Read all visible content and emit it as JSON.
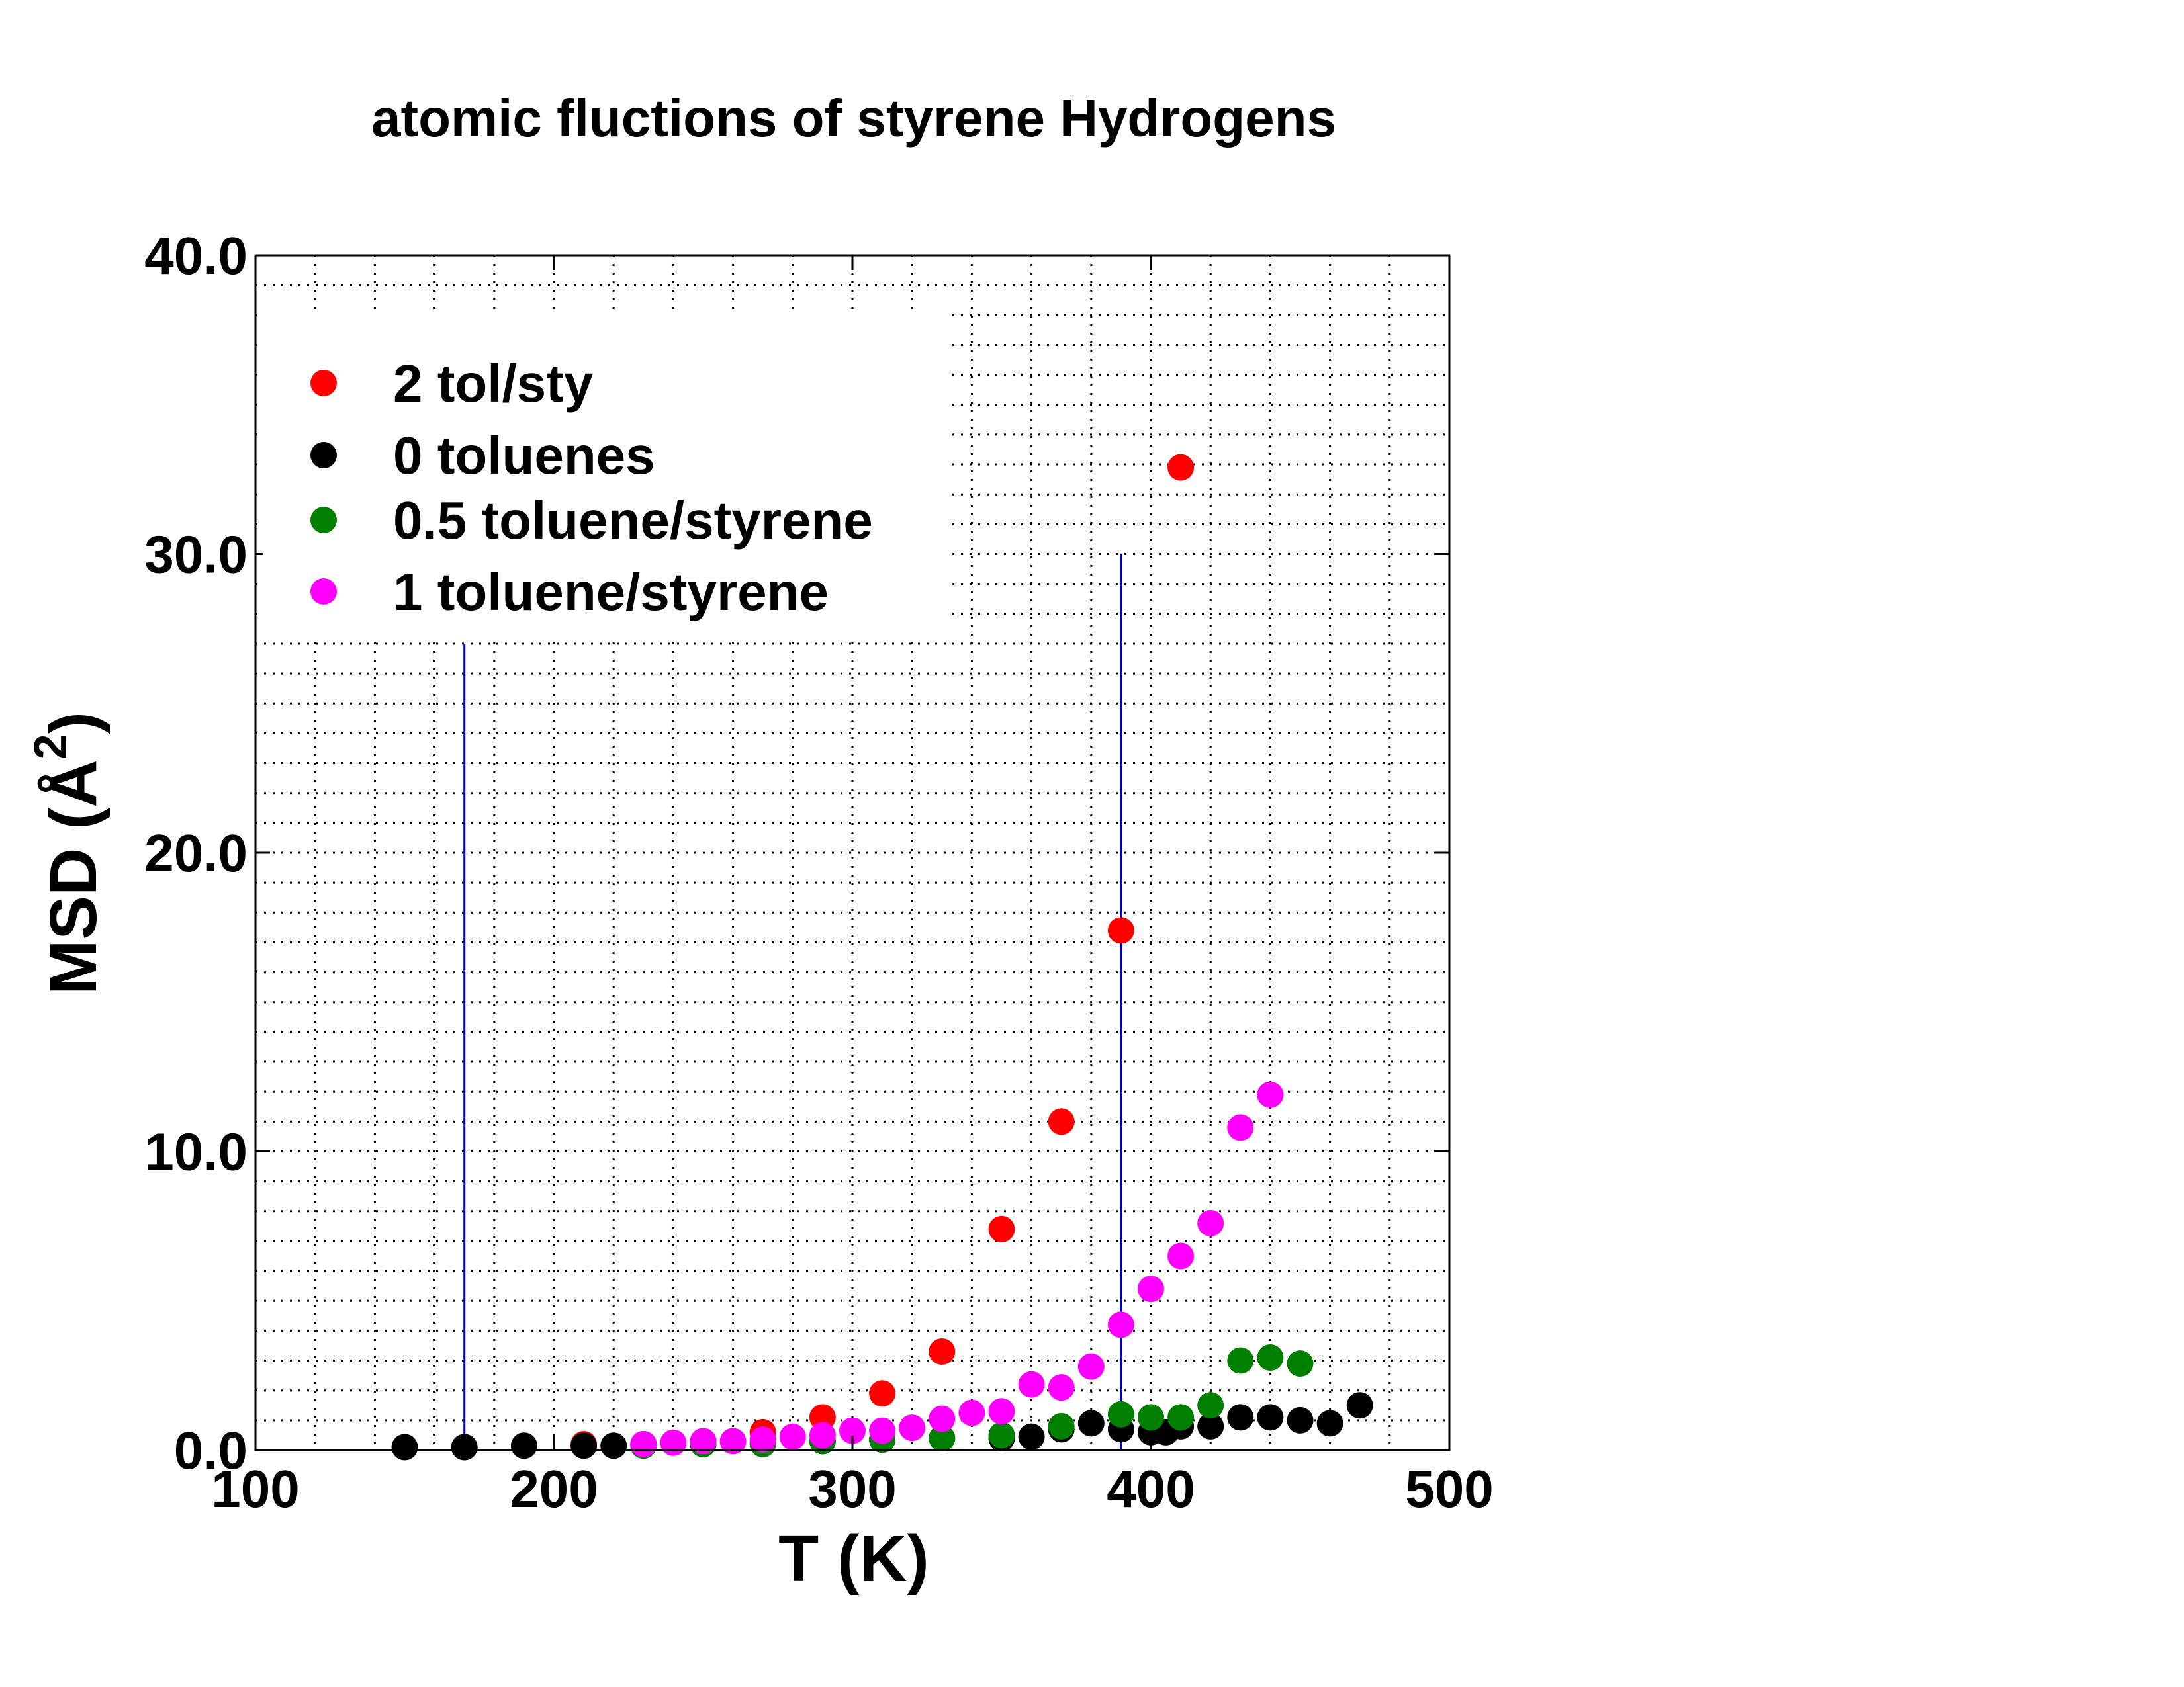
{
  "chart_data": {
    "type": "scatter",
    "title": "atomic fluctions of styrene Hydrogens",
    "xlabel": "T (K)",
    "ylabel_main": "MSD (Å",
    "ylabel_sup": "2",
    "ylabel_close": ")",
    "xlim": [
      100,
      500
    ],
    "ylim": [
      0,
      40
    ],
    "x_ticks": [
      {
        "value": 100,
        "label": "100"
      },
      {
        "value": 200,
        "label": "200"
      },
      {
        "value": 300,
        "label": "300"
      },
      {
        "value": 400,
        "label": "400"
      },
      {
        "value": 500,
        "label": "500"
      }
    ],
    "y_ticks": [
      {
        "value": 0,
        "label": "0.0"
      },
      {
        "value": 10,
        "label": "10.0"
      },
      {
        "value": 20,
        "label": "20.0"
      },
      {
        "value": 30,
        "label": "30.0"
      },
      {
        "value": 40,
        "label": "40.0"
      }
    ],
    "grid": true,
    "legend_position": "top-left",
    "vertical_lines": [
      {
        "x": 170,
        "y_top": 27,
        "color": "#0000cc"
      },
      {
        "x": 390,
        "y_top": 30,
        "color": "#0000cc"
      }
    ],
    "series": [
      {
        "name": "2 tol/sty",
        "color": "#ff0000",
        "points": [
          [
            170,
            0.1
          ],
          [
            210,
            0.2
          ],
          [
            230,
            0.2
          ],
          [
            250,
            0.3
          ],
          [
            270,
            0.6
          ],
          [
            290,
            1.1
          ],
          [
            310,
            1.9
          ],
          [
            330,
            3.3
          ],
          [
            350,
            7.4
          ],
          [
            370,
            11.0
          ],
          [
            390,
            17.4
          ],
          [
            410,
            32.9
          ]
        ]
      },
      {
        "name": "0 toluenes",
        "color": "#000000",
        "points": [
          [
            150,
            0.1
          ],
          [
            170,
            0.1
          ],
          [
            190,
            0.15
          ],
          [
            210,
            0.15
          ],
          [
            220,
            0.15
          ],
          [
            230,
            0.2
          ],
          [
            250,
            0.2
          ],
          [
            270,
            0.25
          ],
          [
            290,
            0.3
          ],
          [
            310,
            0.35
          ],
          [
            330,
            0.4
          ],
          [
            350,
            0.4
          ],
          [
            360,
            0.45
          ],
          [
            370,
            0.7
          ],
          [
            380,
            0.9
          ],
          [
            390,
            0.7
          ],
          [
            400,
            0.6
          ],
          [
            405,
            0.6
          ],
          [
            410,
            0.8
          ],
          [
            420,
            0.8
          ],
          [
            430,
            1.1
          ],
          [
            440,
            1.1
          ],
          [
            450,
            1.0
          ],
          [
            460,
            0.9
          ],
          [
            470,
            1.5
          ]
        ]
      },
      {
        "name": "0.5 toluene/styrene",
        "color": "#008000",
        "points": [
          [
            230,
            0.15
          ],
          [
            250,
            0.2
          ],
          [
            270,
            0.2
          ],
          [
            290,
            0.3
          ],
          [
            310,
            0.35
          ],
          [
            330,
            0.4
          ],
          [
            350,
            0.5
          ],
          [
            370,
            0.8
          ],
          [
            390,
            1.2
          ],
          [
            400,
            1.1
          ],
          [
            410,
            1.1
          ],
          [
            420,
            1.5
          ],
          [
            430,
            3.0
          ],
          [
            440,
            3.1
          ],
          [
            450,
            2.9
          ]
        ]
      },
      {
        "name": "1 toluene/styrene",
        "color": "#ff00ff",
        "points": [
          [
            230,
            0.2
          ],
          [
            240,
            0.25
          ],
          [
            250,
            0.3
          ],
          [
            260,
            0.3
          ],
          [
            270,
            0.35
          ],
          [
            280,
            0.45
          ],
          [
            290,
            0.5
          ],
          [
            300,
            0.65
          ],
          [
            310,
            0.65
          ],
          [
            320,
            0.75
          ],
          [
            330,
            1.05
          ],
          [
            340,
            1.25
          ],
          [
            350,
            1.3
          ],
          [
            360,
            2.2
          ],
          [
            370,
            2.1
          ],
          [
            380,
            2.8
          ],
          [
            390,
            4.2
          ],
          [
            400,
            5.4
          ],
          [
            410,
            6.5
          ],
          [
            420,
            7.6
          ],
          [
            430,
            10.8
          ],
          [
            440,
            11.9
          ]
        ]
      }
    ]
  }
}
